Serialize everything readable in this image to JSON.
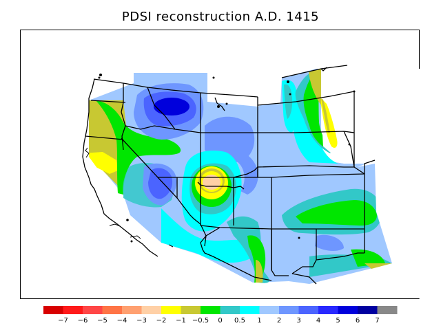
{
  "title": "PDSI reconstruction A.D. 1415",
  "legend": {
    "colors": [
      "#d80000",
      "#ff1a1a",
      "#ff4646",
      "#ff7446",
      "#ffa070",
      "#ffd0a6",
      "#ffff00",
      "#c8c832",
      "#00e600",
      "#32c8c8",
      "#00ffff",
      "#a0c8ff",
      "#6e96ff",
      "#4b64ff",
      "#2828ff",
      "#0000dc",
      "#0000a0",
      "#888888"
    ],
    "labels": [
      "−7",
      "−6",
      "−5",
      "−4",
      "−3",
      "−2",
      "−1",
      "−0.5",
      "0",
      "0.5",
      "1",
      "2",
      "3",
      "4",
      "5",
      "6",
      "7"
    ]
  },
  "palette": {
    "light_blue": "#a0c8ff",
    "mid_blue": "#6e96ff",
    "blue": "#4b64ff",
    "deep_blue": "#0000dc",
    "cyan": "#00ffff",
    "teal": "#32c8c8",
    "green": "#00e600",
    "olive": "#c8c832",
    "yellow": "#ffff00",
    "peach": "#ffd0a6"
  }
}
